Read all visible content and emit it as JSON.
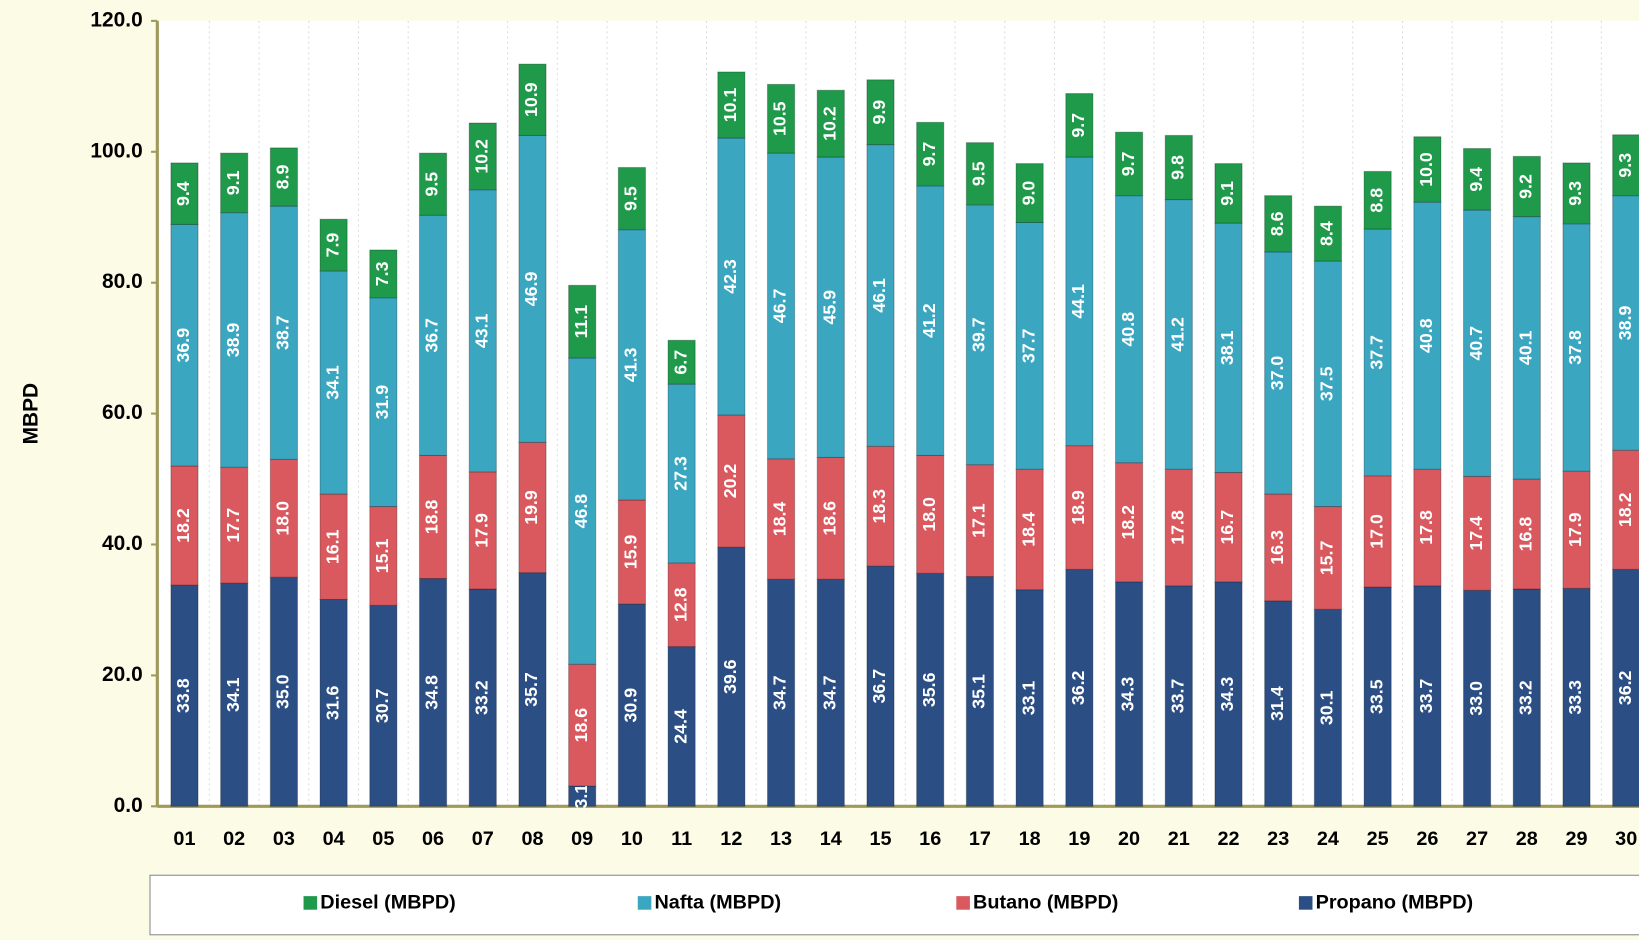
{
  "chart_data": {
    "type": "stacked-bar",
    "y_label": "MBPD",
    "categories": [
      "01",
      "02",
      "03",
      "04",
      "05",
      "06",
      "07",
      "08",
      "09",
      "10",
      "11",
      "12",
      "13",
      "14",
      "15",
      "16",
      "17",
      "18",
      "19",
      "20",
      "21",
      "22",
      "23",
      "24",
      "25",
      "26",
      "27",
      "28",
      "29",
      "30"
    ],
    "ylim": [
      0,
      120
    ],
    "yticks": [
      {
        "value": 0,
        "label": "0.0"
      },
      {
        "value": 20,
        "label": "20.0"
      },
      {
        "value": 40,
        "label": "40.0"
      },
      {
        "value": 60,
        "label": "60.0"
      },
      {
        "value": 80,
        "label": "80.0"
      },
      {
        "value": 100,
        "label": "100.0"
      },
      {
        "value": 120,
        "label": "120.0"
      }
    ],
    "series": [
      {
        "name": "Propano (MBPD)",
        "color": "#2b4f85",
        "values": [
          33.8,
          34.1,
          35.0,
          31.6,
          30.7,
          34.8,
          33.2,
          35.7,
          3.1,
          30.9,
          24.4,
          39.6,
          34.7,
          34.7,
          36.7,
          35.6,
          35.1,
          33.1,
          36.2,
          34.3,
          33.7,
          34.3,
          31.4,
          30.1,
          33.5,
          33.7,
          33.0,
          33.2,
          33.3,
          36.2
        ],
        "value_labels": [
          "33.8",
          "34.1",
          "35.0",
          "31.6",
          "30.7",
          "34.8",
          "33.2",
          "35.7",
          "3.1",
          "30.9",
          "24.4",
          "39.6",
          "34.7",
          "34.7",
          "36.7",
          "35.6",
          "35.1",
          "33.1",
          "36.2",
          "34.3",
          "33.7",
          "34.3",
          "31.4",
          "30.1",
          "33.5",
          "33.7",
          "33.0",
          "33.2",
          "33.3",
          "36.2"
        ]
      },
      {
        "name": "Butano (MBPD)",
        "color": "#d9595f",
        "values": [
          18.2,
          17.7,
          18.0,
          16.1,
          15.1,
          18.8,
          17.9,
          19.9,
          18.6,
          15.9,
          12.8,
          20.2,
          18.4,
          18.6,
          18.3,
          18.0,
          17.1,
          18.4,
          18.9,
          18.2,
          17.8,
          16.7,
          16.3,
          15.7,
          17.0,
          17.8,
          17.4,
          16.8,
          17.9,
          18.2
        ],
        "value_labels": [
          "18.2",
          "17.7",
          "18.0",
          "16.1",
          "15.1",
          "18.8",
          "17.9",
          "19.9",
          "18.6",
          "15.9",
          "12.8",
          "20.2",
          "18.4",
          "18.6",
          "18.3",
          "18.0",
          "17.1",
          "18.4",
          "18.9",
          "18.2",
          "17.8",
          "16.7",
          "16.3",
          "15.7",
          "17.0",
          "17.8",
          "17.4",
          "16.8",
          "17.9",
          "18.2"
        ]
      },
      {
        "name": "Nafta (MBPD)",
        "color": "#3aa6c0",
        "values": [
          36.9,
          38.9,
          38.7,
          34.1,
          31.9,
          36.7,
          43.1,
          46.9,
          46.8,
          41.3,
          27.3,
          42.3,
          46.7,
          45.9,
          46.1,
          41.2,
          39.7,
          37.7,
          44.1,
          40.8,
          41.2,
          38.1,
          37.0,
          37.5,
          37.7,
          40.8,
          40.7,
          40.1,
          37.8,
          38.9
        ],
        "value_labels": [
          "36.9",
          "38.9",
          "38.7",
          "34.1",
          "31.9",
          "36.7",
          "43.1",
          "46.9",
          "46.8",
          "41.3",
          "27.3",
          "42.3",
          "46.7",
          "45.9",
          "46.1",
          "41.2",
          "39.7",
          "37.7",
          "44.1",
          "40.8",
          "41.2",
          "38.1",
          "37.0",
          "37.5",
          "37.7",
          "40.8",
          "40.7",
          "40.1",
          "37.8",
          "38.9"
        ]
      },
      {
        "name": "Diesel (MBPD)",
        "color": "#1e9a4a",
        "values": [
          9.4,
          9.1,
          8.9,
          7.9,
          7.3,
          9.5,
          10.2,
          10.9,
          11.1,
          9.5,
          6.7,
          10.1,
          10.5,
          10.2,
          9.9,
          9.7,
          9.5,
          9.0,
          9.7,
          9.7,
          9.8,
          9.1,
          8.6,
          8.4,
          8.8,
          10.0,
          9.4,
          9.2,
          9.3,
          9.3
        ],
        "value_labels": [
          "9.4",
          "9.1",
          "8.9",
          "7.9",
          "7.3",
          "9.5",
          "10.2",
          "10.9",
          "11.1",
          "9.5",
          "6.7",
          "10.1",
          "10.5",
          "10.2",
          "9.9",
          "9.7",
          "9.5",
          "9.0",
          "9.7",
          "9.7",
          "9.8",
          "9.1",
          "8.6",
          "8.4",
          "8.8",
          "10.0",
          "9.4",
          "9.2",
          "9.3",
          "9.3"
        ]
      }
    ]
  }
}
